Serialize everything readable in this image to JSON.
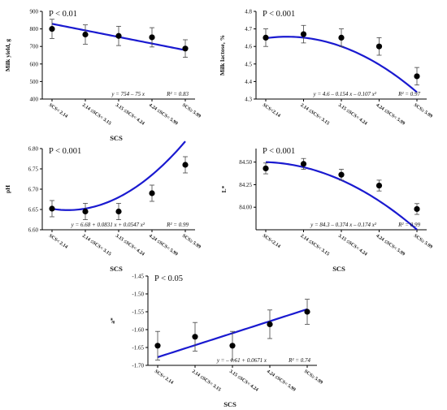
{
  "colors": {
    "fit_line": "#1a1ad0",
    "points": "#000000",
    "axes": "#000000"
  },
  "chart_data": [
    {
      "type": "scatter",
      "ylabel": "Milk yield, g",
      "xlabel": "SCS",
      "categories": [
        "SCS< 2.14",
        "2.14 ≤SCS< 3.15",
        "3.15 ≤SCS< 4.24",
        "4.24 ≤SCS< 5.99",
        "SCS≥ 5.99"
      ],
      "values": [
        800,
        768,
        760,
        752,
        688
      ],
      "errors": [
        55,
        55,
        55,
        55,
        50
      ],
      "ylim": [
        400,
        900
      ],
      "yticks": [
        400,
        500,
        600,
        700,
        800,
        900
      ],
      "ytick_labels": [
        "400",
        "500",
        "600",
        "700",
        "800",
        "900"
      ],
      "fit": {
        "c0": 754,
        "c1": -75,
        "c2": 0
      },
      "pvalue": "P < 0.01",
      "equation": "y = 754 – 75 x",
      "r2": "R² = 0.83",
      "grid": false
    },
    {
      "type": "scatter",
      "ylabel": "Milk lactose, %",
      "xlabel": "",
      "categories": [
        "SCS<2.14",
        "2.14 ≤SCS< 3.15",
        "3.15 ≤SCS< 4.24",
        "4.24 ≤SCS< 5.99",
        "SCS≥ 5.99"
      ],
      "values": [
        4.65,
        4.67,
        4.65,
        4.6,
        4.43
      ],
      "errors": [
        0.05,
        0.05,
        0.05,
        0.05,
        0.05
      ],
      "ylim": [
        4.3,
        4.8
      ],
      "yticks": [
        4.3,
        4.4,
        4.5,
        4.6,
        4.7,
        4.8
      ],
      "ytick_labels": [
        "4.3",
        "4.4",
        "4.5",
        "4.6",
        "4.7",
        "4.8"
      ],
      "fit": {
        "c0": 4.6,
        "c1": -0.154,
        "c2": -0.107
      },
      "pvalue": "P < 0.001",
      "equation": "y = 4.6 – 0.154 x – 0.107 x²",
      "r2": "R² = 0.97",
      "grid": false
    },
    {
      "type": "scatter",
      "ylabel": "pH",
      "xlabel": "SCS",
      "categories": [
        "SCS< 2.14",
        "2.14 ≤SCS< 3.15",
        "3.15 ≤SCS< 4.24",
        "4.24 ≤SCS< 5.99",
        "SCS≥ 5.99"
      ],
      "values": [
        6.652,
        6.645,
        6.645,
        6.69,
        6.76
      ],
      "errors": [
        0.02,
        0.02,
        0.02,
        0.02,
        0.02
      ],
      "ylim": [
        6.6,
        6.8
      ],
      "yticks": [
        6.6,
        6.65,
        6.7,
        6.75,
        6.8
      ],
      "ytick_labels": [
        "6.60",
        "6.65",
        "6.70",
        "6.75",
        "6.80"
      ],
      "fit": {
        "c0": 6.68,
        "c1": 0.0831,
        "c2": 0.0547
      },
      "pvalue": "P < 0.001",
      "equation": "y = 6.68 + 0.0831 x + 0.0547 x²",
      "r2": "R² = 0.99",
      "grid": false
    },
    {
      "type": "scatter",
      "ylabel": "L*",
      "xlabel": "SCS",
      "categories": [
        "SCS<2.14",
        "2.14 ≤SCS< 3.15",
        "3.15 ≤SCS< 4.24",
        "4.24 ≤SCS< 5.99",
        "SCS≥ 5.99"
      ],
      "values": [
        84.43,
        84.48,
        84.36,
        84.24,
        83.98
      ],
      "errors": [
        0.06,
        0.06,
        0.06,
        0.06,
        0.06
      ],
      "ylim": [
        83.75,
        84.65
      ],
      "yticks": [
        84.0,
        84.25,
        84.5
      ],
      "ytick_labels": [
        "84.00",
        "84.25",
        "84.50"
      ],
      "fit": {
        "c0": 84.3,
        "c1": -0.374,
        "c2": -0.174
      },
      "pvalue": "P < 0.001",
      "equation": "y = 84.3 – 0.374 x – 0.174 x²",
      "r2": "R² = 0.99",
      "grid": false
    },
    {
      "type": "scatter",
      "ylabel": "a*",
      "xlabel": "SCS",
      "categories": [
        "SCS< 2.14",
        "2.14 ≤SCS< 3.15",
        "3.15 ≤SCS< 4.24",
        "4.24 ≤SCS< 5.99",
        "SCS≥ 5.99"
      ],
      "values": [
        -1.645,
        -1.62,
        -1.645,
        -1.585,
        -1.55
      ],
      "errors": [
        0.04,
        0.04,
        0.04,
        0.04,
        0.035
      ],
      "ylim": [
        -1.7,
        -1.45
      ],
      "yticks": [
        -1.7,
        -1.65,
        -1.6,
        -1.55,
        -1.5,
        -1.45
      ],
      "ytick_labels": [
        "-1.70",
        "-1.65",
        "-1.60",
        "-1.55",
        "-1.50",
        "-1.45"
      ],
      "fit": {
        "c0": -1.61,
        "c1": 0.0671,
        "c2": 0
      },
      "pvalue": "P < 0.05",
      "equation": "y = – 1.61 + 0.0671 x",
      "r2": "R² = 0.74",
      "grid": false
    }
  ]
}
